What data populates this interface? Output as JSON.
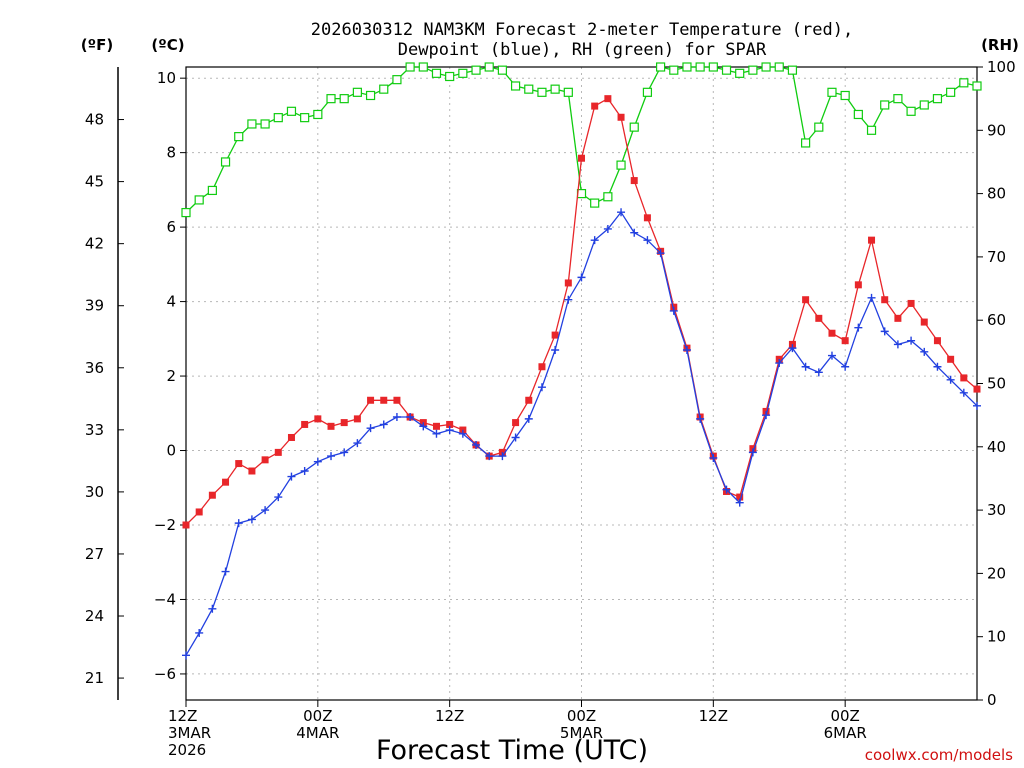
{
  "chart_data": {
    "type": "line",
    "title_line1": "2026030312 NAM3KM Forecast 2-meter Temperature (red),",
    "title_line2": "Dewpoint (blue), RH (green) for SPAR",
    "xlabel": "Forecast Time (UTC)",
    "credit": "coolwx.com/models",
    "units": {
      "fahrenheit": "(ºF)",
      "celsius": "(ºC)",
      "rh": "(RH)"
    },
    "x_range_hours": [
      0,
      72
    ],
    "x_ticks": [
      {
        "hour": 0,
        "lines": [
          "12Z",
          "3MAR",
          "2026"
        ]
      },
      {
        "hour": 12,
        "lines": [
          "00Z",
          "4MAR"
        ]
      },
      {
        "hour": 24,
        "lines": [
          "12Z"
        ]
      },
      {
        "hour": 36,
        "lines": [
          "00Z",
          "5MAR"
        ]
      },
      {
        "hour": 48,
        "lines": [
          "12Z"
        ]
      },
      {
        "hour": 60,
        "lines": [
          "00Z",
          "6MAR"
        ]
      }
    ],
    "c_range": [
      -6.7,
      10.3
    ],
    "c_ticks": [
      -6,
      -4,
      -2,
      0,
      2,
      4,
      6,
      8,
      10
    ],
    "f_ticks": [
      21,
      24,
      27,
      30,
      33,
      36,
      39,
      42,
      45,
      48
    ],
    "rh_range": [
      0,
      100
    ],
    "rh_ticks": [
      0,
      10,
      20,
      30,
      40,
      50,
      60,
      70,
      80,
      90,
      100
    ],
    "series": [
      {
        "name": "2-meter Temperature (°C)",
        "color": "#e8262a",
        "marker": "filled-square",
        "values": [
          -2.0,
          -1.65,
          -1.2,
          -0.85,
          -0.35,
          -0.55,
          -0.25,
          -0.05,
          0.35,
          0.7,
          0.85,
          0.65,
          0.75,
          0.85,
          1.35,
          1.35,
          1.35,
          0.9,
          0.75,
          0.65,
          0.7,
          0.55,
          0.15,
          -0.15,
          -0.05,
          0.75,
          1.35,
          2.25,
          3.1,
          4.5,
          7.85,
          9.25,
          9.45,
          8.95,
          7.25,
          6.25,
          5.35,
          3.85,
          2.75,
          0.9,
          -0.15,
          -1.1,
          -1.25,
          0.05,
          1.05,
          2.45,
          2.85,
          4.05,
          3.55,
          3.15,
          2.95,
          4.45,
          5.65,
          4.05,
          3.55,
          3.95,
          3.45,
          2.95,
          2.45,
          1.95,
          1.65
        ]
      },
      {
        "name": "Dewpoint (°C)",
        "color": "#2240e0",
        "marker": "plus",
        "values": [
          -5.5,
          -4.9,
          -4.25,
          -3.25,
          -1.95,
          -1.85,
          -1.6,
          -1.25,
          -0.7,
          -0.55,
          -0.3,
          -0.15,
          -0.05,
          0.2,
          0.6,
          0.7,
          0.9,
          0.9,
          0.65,
          0.45,
          0.55,
          0.45,
          0.15,
          -0.15,
          -0.15,
          0.35,
          0.85,
          1.7,
          2.7,
          4.05,
          4.65,
          5.65,
          5.95,
          6.4,
          5.85,
          5.65,
          5.3,
          3.75,
          2.7,
          0.85,
          -0.2,
          -1.05,
          -1.4,
          -0.05,
          0.95,
          2.35,
          2.75,
          2.25,
          2.1,
          2.55,
          2.25,
          3.3,
          4.1,
          3.2,
          2.85,
          2.95,
          2.65,
          2.25,
          1.9,
          1.55,
          1.2
        ]
      },
      {
        "name": "Relative Humidity (%)",
        "color": "#10cc10",
        "marker": "open-square",
        "values": [
          77,
          79,
          80.5,
          85,
          89,
          91,
          91,
          92,
          93,
          92,
          92.5,
          95,
          95,
          96,
          95.5,
          96.5,
          98,
          100,
          100,
          99,
          98.5,
          99,
          99.5,
          100,
          99.5,
          97,
          96.5,
          96,
          96.5,
          96,
          80,
          78.5,
          79.5,
          84.5,
          90.5,
          96,
          100,
          99.5,
          100,
          100,
          100,
          99.5,
          99,
          99.5,
          100,
          100,
          99.5,
          88,
          90.5,
          96,
          95.5,
          92.5,
          90,
          94,
          95,
          93,
          94,
          95,
          96,
          97.5,
          97
        ]
      }
    ]
  }
}
